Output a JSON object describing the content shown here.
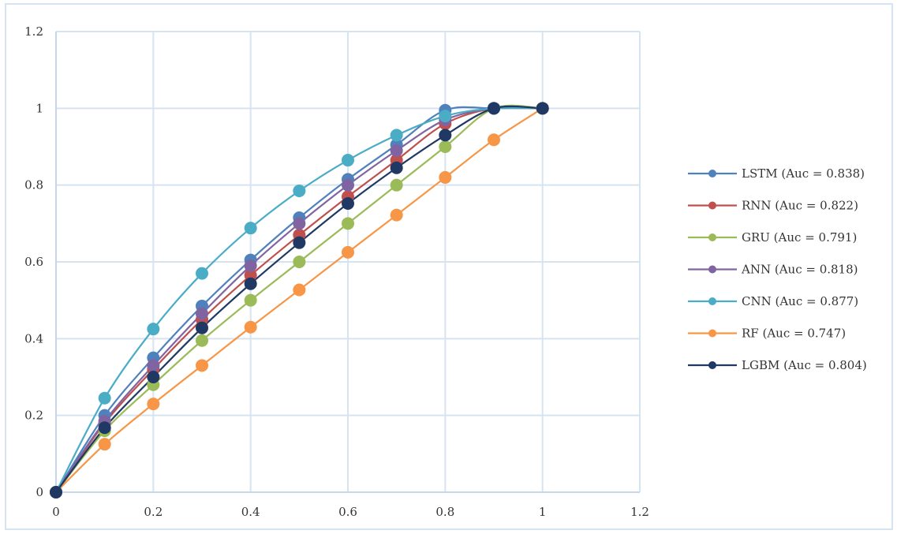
{
  "chart_data": {
    "type": "line",
    "title": "",
    "xlabel": "",
    "ylabel": "",
    "xlim": [
      0,
      1.2
    ],
    "ylim": [
      0,
      1.2
    ],
    "xticks": [
      "0",
      "0.2",
      "0.4",
      "0.6",
      "0.8",
      "1",
      "1.2"
    ],
    "yticks": [
      "0",
      "0.2",
      "0.4",
      "0.6",
      "0.8",
      "1",
      "1.2"
    ],
    "grid": true,
    "legend_position": "right",
    "x": [
      0,
      0.1,
      0.2,
      0.3,
      0.4,
      0.5,
      0.6,
      0.7,
      0.8,
      0.9,
      1
    ],
    "series": [
      {
        "name": "LSTM (Auc = 0.838)",
        "color": "#4f81bd",
        "values": [
          0,
          0.2,
          0.35,
          0.485,
          0.605,
          0.715,
          0.815,
          0.905,
          0.995,
          1.0,
          1.0
        ]
      },
      {
        "name": "RNN (Auc = 0.822)",
        "color": "#c0504d",
        "values": [
          0,
          0.18,
          0.32,
          0.45,
          0.565,
          0.67,
          0.77,
          0.865,
          0.96,
          1.0,
          1.0
        ]
      },
      {
        "name": "GRU (Auc = 0.791)",
        "color": "#9bbb59",
        "values": [
          0,
          0.16,
          0.28,
          0.395,
          0.5,
          0.6,
          0.7,
          0.8,
          0.9,
          1.0,
          1.0
        ]
      },
      {
        "name": "ANN (Auc = 0.818)",
        "color": "#8064a2",
        "values": [
          0,
          0.185,
          0.33,
          0.465,
          0.59,
          0.7,
          0.8,
          0.89,
          0.97,
          1.0,
          1.0
        ]
      },
      {
        "name": "CNN (Auc = 0.877)",
        "color": "#4bacc6",
        "values": [
          0,
          0.245,
          0.425,
          0.57,
          0.688,
          0.785,
          0.865,
          0.93,
          0.98,
          1.0,
          1.0
        ]
      },
      {
        "name": "RF (Auc = 0.747)",
        "color": "#f79646",
        "values": [
          0,
          0.125,
          0.23,
          0.33,
          0.43,
          0.527,
          0.625,
          0.722,
          0.82,
          0.918,
          1.0
        ]
      },
      {
        "name": "LGBM (Auc = 0.804)",
        "color": "#1f3864",
        "values": [
          0,
          0.168,
          0.3,
          0.428,
          0.543,
          0.65,
          0.752,
          0.845,
          0.93,
          1.0,
          1.0
        ]
      }
    ]
  }
}
